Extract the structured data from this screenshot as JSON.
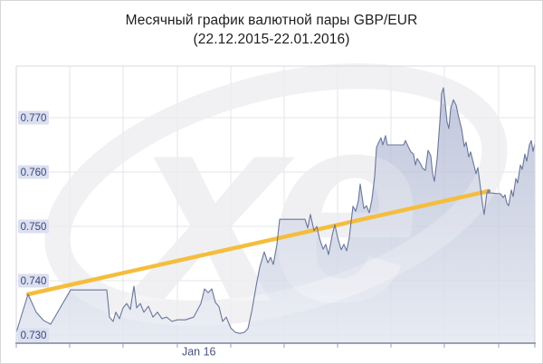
{
  "title": {
    "line1": "Месячный график валютной пары GBP/EUR",
    "line2": "(22.12.2015-22.01.2016)"
  },
  "chart_data": {
    "type": "area",
    "title": "Месячный график валютной пары GBP/EUR (22.12.2015-22.01.2016)",
    "pair": "GBP/EUR",
    "period": {
      "start": "22.12.2015",
      "end": "22.01.2016"
    },
    "watermark": "xe",
    "legend_position": "none",
    "grid": true,
    "y_axis": {
      "min": 0.7285,
      "max": 0.7795,
      "ticks": [
        {
          "value": 0.77,
          "label": "0.770"
        },
        {
          "value": 0.76,
          "label": "0.760"
        },
        {
          "value": 0.75,
          "label": "0.750"
        },
        {
          "value": 0.74,
          "label": "0.740"
        },
        {
          "value": 0.73,
          "label": "0.730"
        }
      ]
    },
    "x_axis": {
      "month_label": {
        "t": 0.3106,
        "label": "Jan 16"
      },
      "gridlines": [
        0.103,
        0.2059,
        0.3106,
        0.4136,
        0.5166,
        0.6196,
        0.7225,
        0.8255,
        0.9302
      ]
    },
    "series": [
      {
        "name": "GBP/EUR rate",
        "points": [
          [
            0.0,
            0.7305
          ],
          [
            0.0227,
            0.7375
          ],
          [
            0.0384,
            0.7342
          ],
          [
            0.0524,
            0.7327
          ],
          [
            0.0663,
            0.732
          ],
          [
            0.0785,
            0.734
          ],
          [
            0.1047,
            0.7383
          ],
          [
            0.1745,
            0.7383
          ],
          [
            0.1798,
            0.7333
          ],
          [
            0.1868,
            0.7325
          ],
          [
            0.192,
            0.7342
          ],
          [
            0.199,
            0.733
          ],
          [
            0.206,
            0.735
          ],
          [
            0.2129,
            0.7358
          ],
          [
            0.2199,
            0.7347
          ],
          [
            0.2269,
            0.739
          ],
          [
            0.2321,
            0.735
          ],
          [
            0.2391,
            0.7358
          ],
          [
            0.2461,
            0.7342
          ],
          [
            0.2548,
            0.7353
          ],
          [
            0.2635,
            0.7333
          ],
          [
            0.2723,
            0.7342
          ],
          [
            0.281,
            0.733
          ],
          [
            0.2897,
            0.7333
          ],
          [
            0.3002,
            0.7325
          ],
          [
            0.3106,
            0.7328
          ],
          [
            0.3264,
            0.7328
          ],
          [
            0.3421,
            0.7333
          ],
          [
            0.3561,
            0.7358
          ],
          [
            0.363,
            0.7385
          ],
          [
            0.37,
            0.7378
          ],
          [
            0.377,
            0.7385
          ],
          [
            0.384,
            0.736
          ],
          [
            0.391,
            0.7352
          ],
          [
            0.3979,
            0.7325
          ],
          [
            0.4049,
            0.7333
          ],
          [
            0.4136,
            0.7313
          ],
          [
            0.4223,
            0.7305
          ],
          [
            0.431,
            0.7303
          ],
          [
            0.4398,
            0.7305
          ],
          [
            0.4468,
            0.7312
          ],
          [
            0.4538,
            0.7342
          ],
          [
            0.4625,
            0.739
          ],
          [
            0.4695,
            0.7425
          ],
          [
            0.4782,
            0.7453
          ],
          [
            0.4852,
            0.7433
          ],
          [
            0.4904,
            0.7443
          ],
          [
            0.4957,
            0.743
          ],
          [
            0.5026,
            0.7467
          ],
          [
            0.5079,
            0.7513
          ],
          [
            0.5567,
            0.7513
          ],
          [
            0.562,
            0.7497
          ],
          [
            0.5672,
            0.7522
          ],
          [
            0.5742,
            0.7492
          ],
          [
            0.5794,
            0.75
          ],
          [
            0.5847,
            0.7478
          ],
          [
            0.5916,
            0.7458
          ],
          [
            0.5969,
            0.7467
          ],
          [
            0.6021,
            0.7448
          ],
          [
            0.6091,
            0.7483
          ],
          [
            0.6143,
            0.7503
          ],
          [
            0.6196,
            0.748
          ],
          [
            0.6265,
            0.7457
          ],
          [
            0.6318,
            0.7467
          ],
          [
            0.637,
            0.7455
          ],
          [
            0.6422,
            0.748
          ],
          [
            0.6492,
            0.7537
          ],
          [
            0.6545,
            0.7528
          ],
          [
            0.6597,
            0.7547
          ],
          [
            0.6632,
            0.7578
          ],
          [
            0.6702,
            0.7533
          ],
          [
            0.6754,
            0.7538
          ],
          [
            0.6806,
            0.7525
          ],
          [
            0.6859,
            0.755
          ],
          [
            0.6911,
            0.7592
          ],
          [
            0.6946,
            0.7645
          ],
          [
            0.6981,
            0.7653
          ],
          [
            0.7033,
            0.7663
          ],
          [
            0.7068,
            0.765
          ],
          [
            0.712,
            0.7667
          ],
          [
            0.7155,
            0.765
          ],
          [
            0.7469,
            0.765
          ],
          [
            0.7504,
            0.7658
          ],
          [
            0.7557,
            0.7647
          ],
          [
            0.7609,
            0.7637
          ],
          [
            0.7661,
            0.7633
          ],
          [
            0.7696,
            0.7613
          ],
          [
            0.7731,
            0.7625
          ],
          [
            0.7784,
            0.7617
          ],
          [
            0.7836,
            0.7607
          ],
          [
            0.7888,
            0.7603
          ],
          [
            0.7941,
            0.764
          ],
          [
            0.7993,
            0.763
          ],
          [
            0.8028,
            0.7597
          ],
          [
            0.8063,
            0.7583
          ],
          [
            0.8115,
            0.7625
          ],
          [
            0.8168,
            0.7692
          ],
          [
            0.8203,
            0.7745
          ],
          [
            0.8237,
            0.7755
          ],
          [
            0.8272,
            0.7725
          ],
          [
            0.8307,
            0.7692
          ],
          [
            0.8342,
            0.768
          ],
          [
            0.8377,
            0.7717
          ],
          [
            0.8429,
            0.7733
          ],
          [
            0.8482,
            0.7723
          ],
          [
            0.8534,
            0.77
          ],
          [
            0.8586,
            0.768
          ],
          [
            0.8639,
            0.7647
          ],
          [
            0.8674,
            0.7655
          ],
          [
            0.8726,
            0.7628
          ],
          [
            0.8761,
            0.7637
          ],
          [
            0.8813,
            0.7617
          ],
          [
            0.8866,
            0.7597
          ],
          [
            0.8901,
            0.7608
          ],
          [
            0.8936,
            0.7583
          ],
          [
            0.8988,
            0.7542
          ],
          [
            0.9023,
            0.7522
          ],
          [
            0.9075,
            0.7562
          ],
          [
            0.9337,
            0.756
          ],
          [
            0.9389,
            0.7553
          ],
          [
            0.9424,
            0.7558
          ],
          [
            0.9459,
            0.7543
          ],
          [
            0.9494,
            0.7538
          ],
          [
            0.9546,
            0.7567
          ],
          [
            0.9581,
            0.7555
          ],
          [
            0.9634,
            0.7588
          ],
          [
            0.9668,
            0.758
          ],
          [
            0.9721,
            0.7613
          ],
          [
            0.9756,
            0.7605
          ],
          [
            0.9808,
            0.7633
          ],
          [
            0.9843,
            0.762
          ],
          [
            0.9895,
            0.765
          ],
          [
            0.993,
            0.7658
          ],
          [
            0.9965,
            0.7638
          ],
          [
            1.0,
            0.7653
          ]
        ]
      }
    ],
    "trendline": {
      "from": [
        0.0227,
        0.7375
      ],
      "to": [
        0.911,
        0.7565
      ]
    },
    "colors": {
      "line": "#6a769c",
      "fill_top": "#aab3cf",
      "fill_bottom": "#e4e8f1",
      "trend": "#f5bd3e",
      "grid": "#e3e4e9",
      "axis_top": "#d9dade",
      "axis_side": "#d5d6dc",
      "axis_bottom": "#99a0b2",
      "label_bg": "#dbdff0",
      "label_text": "#3a477b",
      "x_label_text": "#46527f",
      "watermark": "#ebebee",
      "title_text": "#1d1d1d"
    }
  }
}
